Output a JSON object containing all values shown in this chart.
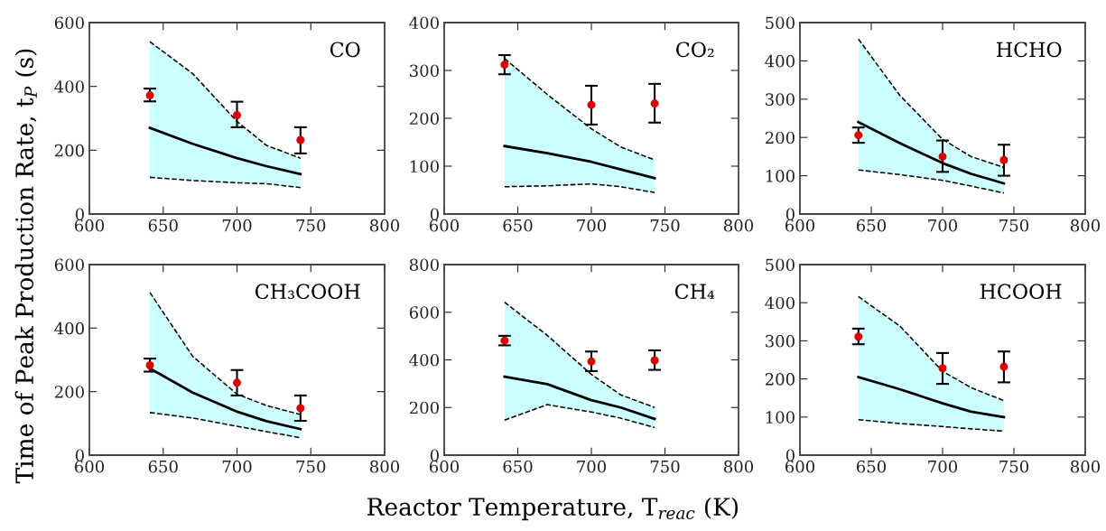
{
  "chart_data": [
    {
      "type": "line",
      "x": [
        641,
        670,
        700,
        720,
        743
      ],
      "xlim": [
        600,
        800
      ],
      "xticks": [
        600,
        650,
        700,
        750,
        800
      ],
      "ylim": [
        0,
        600
      ],
      "yticks": [
        0,
        200,
        400,
        600
      ],
      "grid": false,
      "legend": false,
      "ylabel": "Time of Peak Production Rate, t$_{P}$ (s)",
      "annotations": [
        "CO"
      ],
      "series": [
        {
          "color": "#000000",
          "values": [
            270,
            220,
            175,
            150,
            125
          ],
          "lower": [
            115,
            105,
            98,
            95,
            83
          ],
          "upper": [
            540,
            440,
            290,
            215,
            175
          ]
        },
        {
          "color": "#000000",
          "line_style": "dashed",
          "values": [
            540,
            440,
            290,
            215,
            175
          ]
        },
        {
          "color": "#000000",
          "line_style": "dashed",
          "values": [
            115,
            105,
            98,
            95,
            83
          ]
        },
        {
          "type": "scatter",
          "marker": "circle",
          "x": [
            641,
            700,
            743
          ],
          "color": "#dd0000",
          "values": [
            372,
            310,
            232
          ],
          "errors": [
            [
              353,
              393
            ],
            [
              272,
              352
            ],
            [
              190,
              272
            ]
          ]
        }
      ]
    },
    {
      "type": "line",
      "x": [
        641,
        670,
        700,
        720,
        743
      ],
      "xlim": [
        600,
        800
      ],
      "xticks": [
        600,
        650,
        700,
        750,
        800
      ],
      "ylim": [
        0,
        400
      ],
      "yticks": [
        0,
        100,
        200,
        300,
        400
      ],
      "grid": false,
      "legend": false,
      "annotations": [
        "CO₂"
      ],
      "series": [
        {
          "color": "#000000",
          "values": [
            142,
            127,
            109,
            93,
            75
          ],
          "lower": [
            57,
            59,
            63,
            57,
            45
          ],
          "upper": [
            325,
            250,
            178,
            140,
            113
          ]
        },
        {
          "color": "#000000",
          "line_style": "dashed",
          "values": [
            325,
            250,
            178,
            140,
            113
          ]
        },
        {
          "color": "#000000",
          "line_style": "dashed",
          "values": [
            57,
            59,
            63,
            57,
            45
          ]
        },
        {
          "type": "scatter",
          "marker": "circle",
          "x": [
            641,
            700,
            743
          ],
          "color": "#dd0000",
          "values": [
            312,
            228,
            231
          ],
          "errors": [
            [
              292,
              332
            ],
            [
              187,
              268
            ],
            [
              191,
              272
            ]
          ]
        }
      ]
    },
    {
      "type": "line",
      "x": [
        641,
        670,
        700,
        720,
        743
      ],
      "xlim": [
        600,
        800
      ],
      "xticks": [
        600,
        650,
        700,
        750,
        800
      ],
      "ylim": [
        0,
        500
      ],
      "yticks": [
        0,
        100,
        200,
        300,
        400,
        500
      ],
      "grid": false,
      "legend": false,
      "annotations": [
        "HCHO"
      ],
      "series": [
        {
          "color": "#000000",
          "values": [
            240,
            185,
            133,
            105,
            80
          ],
          "lower": [
            115,
            103,
            88,
            73,
            55
          ],
          "upper": [
            457,
            310,
            195,
            150,
            122
          ]
        },
        {
          "color": "#000000",
          "line_style": "dashed",
          "values": [
            457,
            310,
            195,
            150,
            122
          ]
        },
        {
          "color": "#000000",
          "line_style": "dashed",
          "values": [
            115,
            103,
            88,
            73,
            55
          ]
        },
        {
          "type": "scatter",
          "marker": "circle",
          "x": [
            641,
            700,
            743
          ],
          "color": "#dd0000",
          "values": [
            206,
            150,
            141
          ],
          "errors": [
            [
              186,
              226
            ],
            [
              110,
              192
            ],
            [
              100,
              181
            ]
          ]
        }
      ]
    },
    {
      "type": "line",
      "x": [
        641,
        670,
        700,
        720,
        743
      ],
      "xlim": [
        600,
        800
      ],
      "xticks": [
        600,
        650,
        700,
        750,
        800
      ],
      "ylim": [
        0,
        600
      ],
      "yticks": [
        0,
        200,
        400,
        600
      ],
      "grid": false,
      "legend": false,
      "annotations": [
        "CH₃COOH"
      ],
      "series": [
        {
          "color": "#000000",
          "values": [
            273,
            197,
            137,
            107,
            82
          ],
          "lower": [
            134,
            117,
            91,
            74,
            55
          ],
          "upper": [
            512,
            311,
            192,
            156,
            128
          ]
        },
        {
          "color": "#000000",
          "line_style": "dashed",
          "values": [
            512,
            311,
            192,
            156,
            128
          ]
        },
        {
          "color": "#000000",
          "line_style": "dashed",
          "values": [
            134,
            117,
            91,
            74,
            55
          ]
        },
        {
          "type": "scatter",
          "marker": "circle",
          "x": [
            641,
            700,
            743
          ],
          "color": "#dd0000",
          "values": [
            283,
            228,
            148
          ],
          "errors": [
            [
              263,
              304
            ],
            [
              188,
              268
            ],
            [
              108,
              188
            ]
          ]
        }
      ]
    },
    {
      "type": "line",
      "x": [
        641,
        670,
        700,
        720,
        743
      ],
      "xlim": [
        600,
        800
      ],
      "xticks": [
        600,
        650,
        700,
        750,
        800
      ],
      "ylim": [
        0,
        800
      ],
      "yticks": [
        0,
        200,
        400,
        600,
        800
      ],
      "grid": false,
      "legend": false,
      "xlabel": "Reactor Temperature, T$_{reac}$ (K)",
      "annotations": [
        "CH₄"
      ],
      "series": [
        {
          "color": "#000000",
          "values": [
            329,
            298,
            231,
            200,
            152
          ],
          "lower": [
            147,
            212,
            181,
            155,
            116
          ],
          "upper": [
            642,
            503,
            339,
            253,
            200
          ]
        },
        {
          "color": "#000000",
          "line_style": "dashed",
          "values": [
            642,
            503,
            339,
            253,
            200
          ]
        },
        {
          "color": "#000000",
          "line_style": "dashed",
          "values": [
            147,
            212,
            181,
            155,
            116
          ]
        },
        {
          "type": "scatter",
          "marker": "circle",
          "x": [
            641,
            700,
            743
          ],
          "color": "#dd0000",
          "values": [
            481,
            393,
            398
          ],
          "errors": [
            [
              461,
              501
            ],
            [
              353,
              435
            ],
            [
              358,
              440
            ]
          ]
        }
      ]
    },
    {
      "type": "line",
      "x": [
        641,
        670,
        700,
        720,
        743
      ],
      "xlim": [
        600,
        800
      ],
      "xticks": [
        600,
        650,
        700,
        750,
        800
      ],
      "ylim": [
        0,
        500
      ],
      "yticks": [
        0,
        100,
        200,
        300,
        400,
        500
      ],
      "grid": false,
      "legend": false,
      "annotations": [
        "HCOOH"
      ],
      "series": [
        {
          "color": "#000000",
          "values": [
            205,
            173,
            136,
            114,
            100
          ],
          "lower": [
            93,
            83,
            75,
            69,
            63
          ],
          "upper": [
            416,
            339,
            220,
            177,
            143
          ]
        },
        {
          "color": "#000000",
          "line_style": "dashed",
          "values": [
            416,
            339,
            220,
            177,
            143
          ]
        },
        {
          "color": "#000000",
          "line_style": "dashed",
          "values": [
            93,
            83,
            75,
            69,
            63
          ]
        },
        {
          "type": "scatter",
          "marker": "circle",
          "x": [
            641,
            700,
            743
          ],
          "color": "#dd0000",
          "values": [
            311,
            228,
            232
          ],
          "errors": [
            [
              291,
              332
            ],
            [
              187,
              268
            ],
            [
              191,
              272
            ]
          ]
        }
      ]
    }
  ]
}
